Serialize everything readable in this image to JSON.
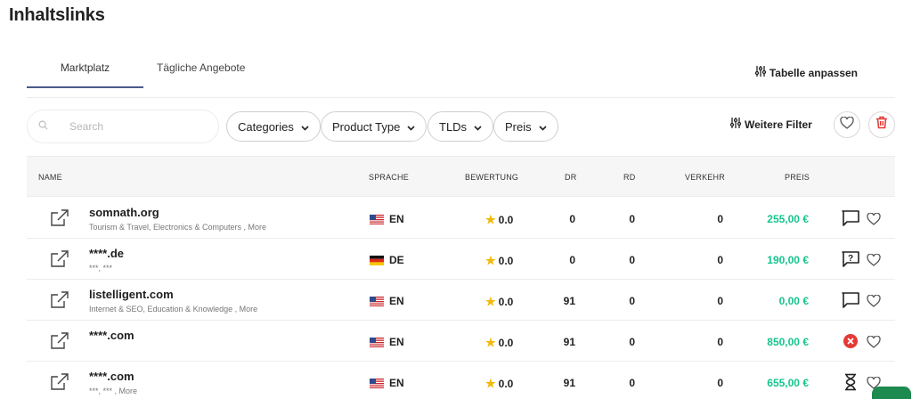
{
  "page": {
    "title": "Inhaltslinks"
  },
  "tabs": [
    {
      "label": "Marktplatz",
      "active": true
    },
    {
      "label": "Tägliche Angebote",
      "active": false
    }
  ],
  "toolbar": {
    "customize_label": "Tabelle anpassen",
    "more_filters_label": "Weitere Filter"
  },
  "filters": {
    "search_placeholder": "Search",
    "dropdowns": [
      "Categories",
      "Product Type",
      "TLDs",
      "Preis"
    ]
  },
  "table": {
    "columns": [
      "NAME",
      "SPRACHE",
      "BEWERTUNG",
      "DR",
      "RD",
      "VERKEHR",
      "PREIS"
    ],
    "rows": [
      {
        "domain": "somnath.org",
        "categories": "Tourism & Travel, Electronics & Computers , More",
        "flag": "us-flag-icon",
        "lang": "EN",
        "rating": "0.0",
        "dr": "0",
        "rd": "0",
        "traffic": "0",
        "price": "255,00 €",
        "status": "chat-icon"
      },
      {
        "domain": "****.de",
        "categories": "***, ***",
        "flag": "de-flag-icon",
        "lang": "DE",
        "rating": "0.0",
        "dr": "0",
        "rd": "0",
        "traffic": "0",
        "price": "190,00 €",
        "status": "question-chat-icon"
      },
      {
        "domain": "listelligent.com",
        "categories": "Internet & SEO, Education & Knowledge , More",
        "flag": "us-flag-icon",
        "lang": "EN",
        "rating": "0.0",
        "dr": "91",
        "rd": "0",
        "traffic": "0",
        "price": "0,00 €",
        "status": "chat-icon"
      },
      {
        "domain": "****.com",
        "categories": "",
        "flag": "us-flag-icon",
        "lang": "EN",
        "rating": "0.0",
        "dr": "91",
        "rd": "0",
        "traffic": "0",
        "price": "850,00 €",
        "status": "rejected-icon"
      },
      {
        "domain": "****.com",
        "categories": "***, *** , More",
        "flag": "us-flag-icon",
        "lang": "EN",
        "rating": "0.0",
        "dr": "91",
        "rd": "0",
        "traffic": "0",
        "price": "655,00 €",
        "status": "hourglass-icon"
      }
    ]
  },
  "colors": {
    "price": "#16c48e",
    "tab_underline": "#4a5a8c",
    "star": "#f2b90c",
    "delete": "#e53935",
    "rejected": "#e53935"
  }
}
